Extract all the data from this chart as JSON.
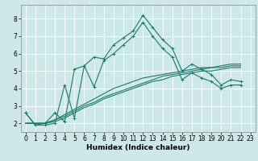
{
  "xlabel": "Humidex (Indice chaleur)",
  "ylabel": "",
  "bg_color": "#cce8e8",
  "grid_color": "#ffffff",
  "line_color": "#1a7a6e",
  "xlim": [
    -0.5,
    23.5
  ],
  "ylim": [
    1.5,
    8.8
  ],
  "xticks": [
    0,
    1,
    2,
    3,
    4,
    5,
    6,
    7,
    8,
    9,
    10,
    11,
    12,
    13,
    14,
    15,
    16,
    17,
    18,
    19,
    20,
    21,
    22,
    23
  ],
  "yticks": [
    2,
    3,
    4,
    5,
    6,
    7,
    8
  ],
  "series": [
    [
      2.6,
      1.9,
      2.0,
      2.6,
      2.1,
      5.1,
      5.3,
      5.8,
      5.7,
      6.5,
      6.9,
      7.3,
      8.2,
      7.5,
      6.8,
      6.3,
      5.0,
      5.4,
      5.1,
      4.8,
      4.2,
      4.5,
      4.4
    ],
    [
      2.6,
      1.9,
      1.9,
      2.0,
      4.2,
      2.3,
      5.3,
      4.1,
      5.6,
      6.0,
      6.5,
      7.0,
      7.8,
      7.0,
      6.3,
      5.8,
      4.5,
      4.9,
      4.6,
      4.4,
      4.0,
      4.2,
      4.2
    ],
    [
      2.0,
      2.0,
      2.0,
      2.2,
      2.5,
      2.8,
      3.1,
      3.4,
      3.7,
      4.0,
      4.2,
      4.4,
      4.6,
      4.7,
      4.8,
      4.9,
      5.0,
      5.1,
      5.2,
      5.2,
      5.3,
      5.4,
      5.4
    ],
    [
      2.0,
      2.0,
      2.0,
      2.2,
      2.4,
      2.7,
      3.0,
      3.2,
      3.5,
      3.7,
      3.9,
      4.1,
      4.3,
      4.5,
      4.7,
      4.8,
      4.9,
      5.0,
      5.1,
      5.2,
      5.2,
      5.3,
      5.3
    ],
    [
      2.0,
      2.0,
      2.0,
      2.1,
      2.3,
      2.6,
      2.9,
      3.1,
      3.4,
      3.6,
      3.8,
      4.0,
      4.2,
      4.4,
      4.5,
      4.7,
      4.8,
      4.9,
      5.0,
      5.0,
      5.1,
      5.2,
      5.2
    ]
  ],
  "marker_series": [
    0,
    1
  ],
  "marker": "+",
  "marker_size": 3,
  "marker_linewidth": 0.7,
  "linewidth": 0.8,
  "tick_fontsize": 5.5,
  "xlabel_fontsize": 6.5,
  "xlabel_fontweight": "bold"
}
